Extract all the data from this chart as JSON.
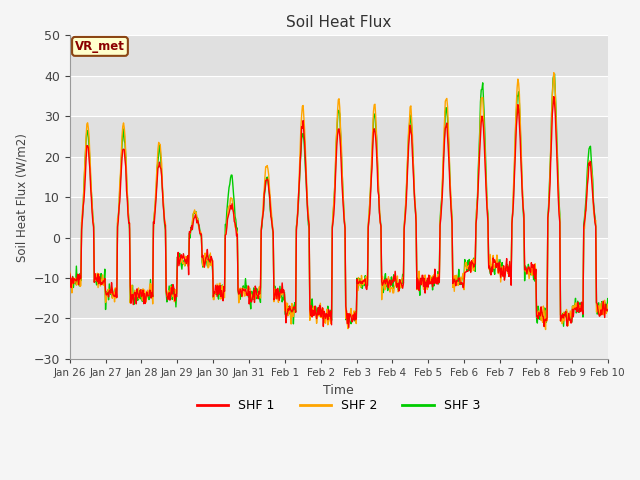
{
  "title": "Soil Heat Flux",
  "ylabel": "Soil Heat Flux (W/m2)",
  "xlabel": "Time",
  "ylim": [
    -30,
    50
  ],
  "colors": [
    "#ff0000",
    "#ffa500",
    "#00cc00"
  ],
  "linewidth": 1.0,
  "annotation_text": "VR_met",
  "x_tick_labels": [
    "Jan 26",
    "Jan 27",
    "Jan 28",
    "Jan 29",
    "Jan 30",
    "Jan 31",
    "Feb 1",
    "Feb 2",
    "Feb 3",
    "Feb 4",
    "Feb 5",
    "Feb 6",
    "Feb 7",
    "Feb 8",
    "Feb 9",
    "Feb 10"
  ],
  "series": [
    "SHF 1",
    "SHF 2",
    "SHF 3"
  ],
  "n_days": 15,
  "pts_per_day": 48,
  "day_peak_shf1": [
    22,
    22,
    19,
    5.5,
    8,
    15,
    28,
    27,
    27,
    27,
    28,
    30,
    32,
    34,
    18
  ],
  "day_peak_shf2": [
    28,
    28,
    24,
    6,
    10,
    18,
    33,
    34,
    33,
    32,
    35,
    35,
    39,
    40,
    19
  ],
  "day_peak_shf3": [
    27,
    26,
    22,
    6.5,
    16,
    15,
    26,
    32,
    30,
    30,
    32,
    39,
    37,
    41,
    23
  ],
  "day_trough": [
    -15,
    -20,
    -20,
    -8,
    -19,
    -20,
    -26,
    -28,
    -16,
    -16,
    -15,
    -10,
    -12,
    -28,
    -25
  ],
  "band_colors": [
    "#ebebeb",
    "#e0e0e0"
  ],
  "outer_bg": "#f5f5f5"
}
